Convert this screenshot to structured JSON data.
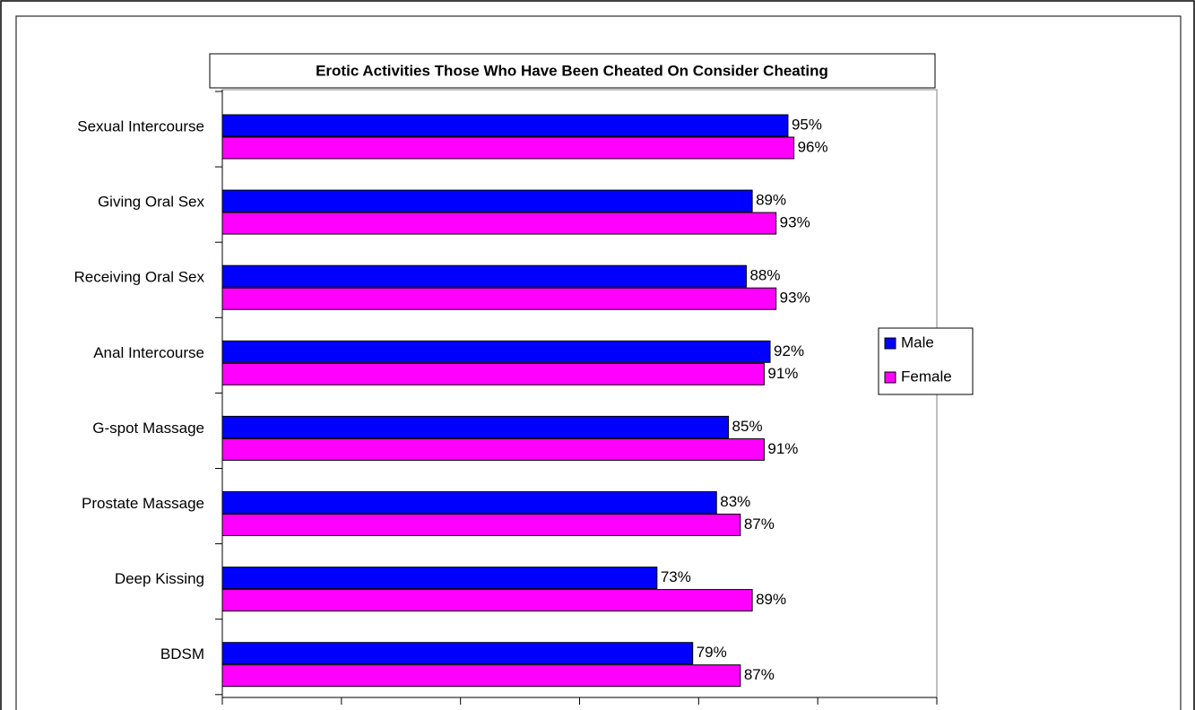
{
  "chart_data": {
    "type": "bar",
    "orientation": "horizontal",
    "title": "Erotic Activities Those Who Have Been Cheated On Consider Cheating",
    "categories": [
      "Sexual Intercourse",
      "Giving Oral Sex",
      "Receiving Oral Sex",
      "Anal Intercourse",
      "G-spot Massage",
      "Prostate Massage",
      "Deep Kissing",
      "BDSM"
    ],
    "series": [
      {
        "name": "Male",
        "color": "#0000ff",
        "values": [
          95,
          89,
          88,
          92,
          85,
          83,
          73,
          79
        ],
        "value_labels": [
          "95%",
          "89%",
          "88%",
          "92%",
          "85%",
          "83%",
          "73%",
          "79%"
        ]
      },
      {
        "name": "Female",
        "color": "#ff00ff",
        "values": [
          96,
          93,
          93,
          91,
          91,
          87,
          89,
          87
        ],
        "value_labels": [
          "96%",
          "93%",
          "93%",
          "91%",
          "91%",
          "87%",
          "89%",
          "87%"
        ]
      }
    ],
    "xlim": [
      0,
      120
    ],
    "xticks": [
      0,
      20,
      40,
      60,
      80,
      100,
      120
    ],
    "legend": "right"
  }
}
